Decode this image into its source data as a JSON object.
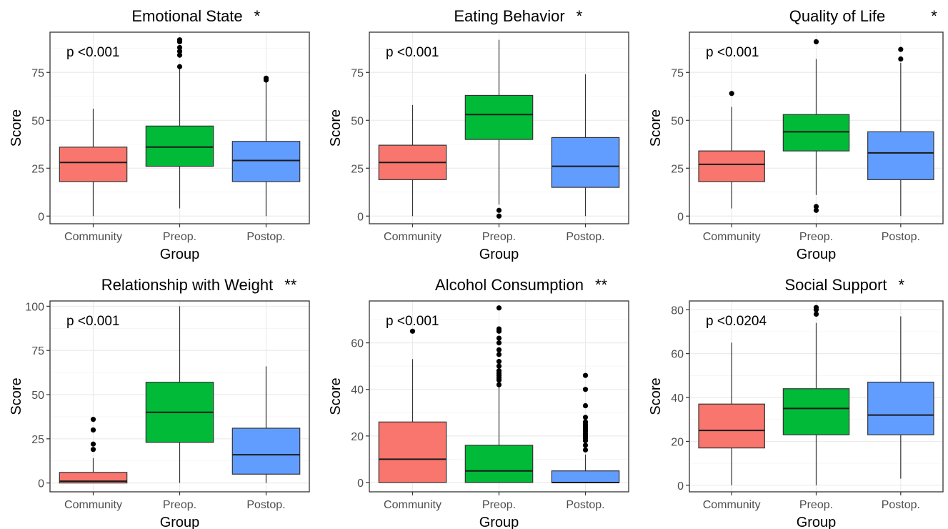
{
  "chart_data": [
    {
      "type": "box",
      "title": "Emotional State",
      "significance": "*",
      "annotation": "p <0.001",
      "xlabel": "Group",
      "ylabel": "Score",
      "ylim": [
        -4,
        96
      ],
      "yticks": [
        0,
        25,
        50,
        75
      ],
      "categories": [
        "Community",
        "Preop.",
        "Postop."
      ],
      "colors": [
        "#F8766D",
        "#00BA38",
        "#619CFF"
      ],
      "boxes": [
        {
          "name": "Community",
          "min": 0,
          "q1": 18,
          "median": 28,
          "q3": 36,
          "max": 56,
          "outliers": []
        },
        {
          "name": "Preop.",
          "min": 4,
          "q1": 26,
          "median": 36,
          "q3": 47,
          "max": 77,
          "outliers": [
            78,
            84,
            86,
            88,
            91,
            92
          ]
        },
        {
          "name": "Postop.",
          "min": 0,
          "q1": 18,
          "median": 29,
          "q3": 39,
          "max": 70,
          "outliers": [
            71,
            72
          ]
        }
      ]
    },
    {
      "type": "box",
      "title": "Eating Behavior",
      "significance": "*",
      "annotation": "p <0.001",
      "xlabel": "Group",
      "ylabel": "Score",
      "ylim": [
        -4,
        96
      ],
      "yticks": [
        0,
        25,
        50,
        75
      ],
      "categories": [
        "Community",
        "Preop.",
        "Postop."
      ],
      "colors": [
        "#F8766D",
        "#00BA38",
        "#619CFF"
      ],
      "boxes": [
        {
          "name": "Community",
          "min": 0,
          "q1": 19,
          "median": 28,
          "q3": 37,
          "max": 58,
          "outliers": []
        },
        {
          "name": "Preop.",
          "min": 6,
          "q1": 40,
          "median": 53,
          "q3": 63,
          "max": 92,
          "outliers": [
            3,
            0
          ]
        },
        {
          "name": "Postop.",
          "min": 0,
          "q1": 15,
          "median": 26,
          "q3": 41,
          "max": 74,
          "outliers": []
        }
      ]
    },
    {
      "type": "box",
      "title": "Quality of Life",
      "significance": "*",
      "annotation": "p <0.001",
      "xlabel": "Group",
      "ylabel": "Score",
      "ylim": [
        -4,
        96
      ],
      "yticks": [
        0,
        25,
        50,
        75
      ],
      "categories": [
        "Community",
        "Preop.",
        "Postop."
      ],
      "colors": [
        "#F8766D",
        "#00BA38",
        "#619CFF"
      ],
      "boxes": [
        {
          "name": "Community",
          "min": 4,
          "q1": 18,
          "median": 27,
          "q3": 34,
          "max": 57,
          "outliers": [
            64
          ]
        },
        {
          "name": "Preop.",
          "min": 11,
          "q1": 34,
          "median": 44,
          "q3": 53,
          "max": 82,
          "outliers": [
            91,
            5,
            3
          ]
        },
        {
          "name": "Postop.",
          "min": 0,
          "q1": 19,
          "median": 33,
          "q3": 44,
          "max": 80,
          "outliers": [
            82,
            87
          ]
        }
      ]
    },
    {
      "type": "box",
      "title": "Relationship with Weight",
      "significance": "**",
      "annotation": "p <0.001",
      "xlabel": "Group",
      "ylabel": "Score",
      "ylim": [
        -5,
        103
      ],
      "yticks": [
        0,
        25,
        50,
        75,
        100
      ],
      "categories": [
        "Community",
        "Preop.",
        "Postop."
      ],
      "colors": [
        "#F8766D",
        "#00BA38",
        "#619CFF"
      ],
      "boxes": [
        {
          "name": "Community",
          "min": 0,
          "q1": 0,
          "median": 1,
          "q3": 6,
          "max": 14,
          "outliers": [
            19,
            22,
            30,
            36
          ]
        },
        {
          "name": "Preop.",
          "min": 0,
          "q1": 23,
          "median": 40,
          "q3": 57,
          "max": 100,
          "outliers": []
        },
        {
          "name": "Postop.",
          "min": 0,
          "q1": 5,
          "median": 16,
          "q3": 31,
          "max": 66,
          "outliers": []
        }
      ]
    },
    {
      "type": "box",
      "title": "Alcohol Consumption",
      "significance": "**",
      "annotation": "p <0.001",
      "xlabel": "Group",
      "ylabel": "Score",
      "ylim": [
        -4,
        78
      ],
      "yticks": [
        0,
        20,
        40,
        60
      ],
      "categories": [
        "Community",
        "Preop.",
        "Postop."
      ],
      "colors": [
        "#F8766D",
        "#00BA38",
        "#619CFF"
      ],
      "boxes": [
        {
          "name": "Community",
          "min": 0,
          "q1": 0,
          "median": 10,
          "q3": 26,
          "max": 53,
          "outliers": [
            65
          ]
        },
        {
          "name": "Preop.",
          "min": 0,
          "q1": 0,
          "median": 5,
          "q3": 16,
          "max": 41,
          "outliers": [
            42,
            44,
            45,
            46,
            47,
            48,
            50,
            52,
            55,
            57,
            60,
            62,
            65,
            66,
            75
          ]
        },
        {
          "name": "Postop.",
          "min": 0,
          "q1": 0,
          "median": 0,
          "q3": 5,
          "max": 12,
          "outliers": [
            14,
            16,
            18,
            19,
            20,
            21,
            22,
            23,
            24,
            25,
            26,
            28,
            33,
            40,
            46
          ]
        }
      ]
    },
    {
      "type": "box",
      "title": "Social Support",
      "significance": "*",
      "annotation": "p <0.0204",
      "xlabel": "Group",
      "ylabel": "Score",
      "ylim": [
        -3,
        84
      ],
      "yticks": [
        0,
        20,
        40,
        60,
        80
      ],
      "categories": [
        "Community",
        "Preop.",
        "Postop."
      ],
      "colors": [
        "#F8766D",
        "#00BA38",
        "#619CFF"
      ],
      "boxes": [
        {
          "name": "Community",
          "min": 0,
          "q1": 17,
          "median": 25,
          "q3": 37,
          "max": 65,
          "outliers": []
        },
        {
          "name": "Preop.",
          "min": 0,
          "q1": 23,
          "median": 35,
          "q3": 44,
          "max": 74,
          "outliers": [
            78,
            80,
            81
          ]
        },
        {
          "name": "Postop.",
          "min": 3,
          "q1": 23,
          "median": 32,
          "q3": 47,
          "max": 77,
          "outliers": []
        }
      ]
    }
  ]
}
